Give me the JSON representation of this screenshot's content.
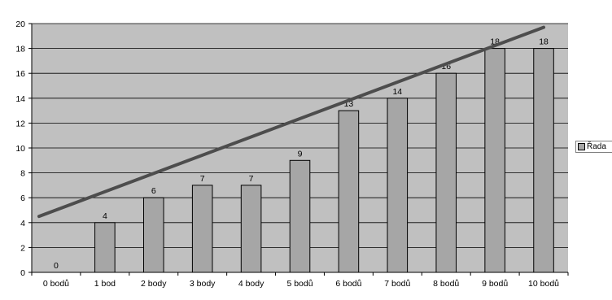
{
  "chart_data": {
    "type": "bar",
    "categories": [
      "0 bodů",
      "1 bod",
      "2 body",
      "3 body",
      "4 body",
      "5 bodů",
      "6 bodů",
      "7 bodů",
      "8 bodů",
      "9 bodů",
      "10 bodů"
    ],
    "series": [
      {
        "name": "Řada",
        "values": [
          0,
          4,
          6,
          7,
          7,
          9,
          13,
          14,
          16,
          18,
          18
        ]
      }
    ],
    "data_labels": [
      "0",
      "4",
      "6",
      "7",
      "7",
      "9",
      "13",
      "14",
      "16",
      "18",
      "18"
    ],
    "trendline": {
      "type": "linear",
      "start_value": 4.5,
      "end_value": 19.7
    },
    "ylim": [
      0,
      20
    ],
    "yticks": [
      "0",
      "2",
      "4",
      "6",
      "8",
      "10",
      "12",
      "14",
      "16",
      "18",
      "20"
    ],
    "grid": true,
    "legend_position": "right",
    "colors": {
      "plot_background": "#c0c0c0",
      "bar_fill": "#a6a6a6",
      "bar_edge": "#000000",
      "gridline": "#000000",
      "trendline": "#4d4d4d"
    }
  }
}
